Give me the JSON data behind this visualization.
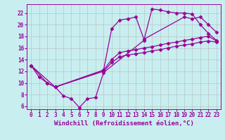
{
  "xlabel": "Windchill (Refroidissement éolien,°C)",
  "bg_color": "#c8eef0",
  "line_color": "#990099",
  "xlim": [
    -0.5,
    23.5
  ],
  "ylim": [
    5.5,
    23.5
  ],
  "xticks": [
    0,
    1,
    2,
    3,
    4,
    5,
    6,
    7,
    8,
    9,
    10,
    11,
    12,
    13,
    14,
    15,
    16,
    17,
    18,
    19,
    20,
    21,
    22,
    23
  ],
  "yticks": [
    6,
    8,
    10,
    12,
    14,
    16,
    18,
    20,
    22
  ],
  "grid_color": "#b0b0b0",
  "lines": [
    {
      "x": [
        0,
        1,
        2,
        3,
        4,
        5,
        6,
        7,
        8,
        9,
        14,
        15,
        16,
        17,
        18,
        19,
        20,
        21,
        22,
        23
      ],
      "y": [
        13,
        11,
        10,
        9.3,
        7.8,
        7.3,
        5.8,
        7.3,
        7.5,
        11.8,
        17.3,
        22.7,
        22.5,
        22.2,
        22.0,
        22.0,
        21.8,
        20.0,
        18.5,
        17.3
      ]
    },
    {
      "x": [
        0,
        2,
        3,
        9,
        10,
        11,
        12,
        13,
        14,
        15,
        16,
        17,
        18,
        19,
        20,
        21,
        22,
        23
      ],
      "y": [
        13,
        10,
        9.3,
        12.0,
        13.5,
        14.5,
        14.8,
        15.0,
        15.2,
        15.5,
        15.7,
        16.0,
        16.3,
        16.5,
        16.7,
        17.0,
        17.2,
        17.0
      ]
    },
    {
      "x": [
        0,
        3,
        9,
        10,
        11,
        12,
        13,
        14,
        15,
        16,
        17,
        18,
        19,
        20,
        21,
        22,
        23
      ],
      "y": [
        13,
        9.3,
        12.2,
        14.0,
        15.2,
        15.5,
        15.7,
        16.0,
        16.2,
        16.5,
        16.8,
        17.0,
        17.3,
        17.5,
        17.8,
        18.0,
        17.2
      ]
    },
    {
      "x": [
        3,
        9,
        10,
        11,
        12,
        13,
        14,
        19,
        20,
        21,
        22,
        23
      ],
      "y": [
        9.3,
        12.2,
        19.3,
        20.8,
        21.0,
        21.3,
        17.5,
        21.3,
        21.0,
        21.3,
        20.0,
        18.7
      ]
    }
  ],
  "marker": "D",
  "markersize": 2.5,
  "linewidth": 0.9,
  "xlabel_fontsize": 6.5,
  "tick_fontsize": 5.5
}
